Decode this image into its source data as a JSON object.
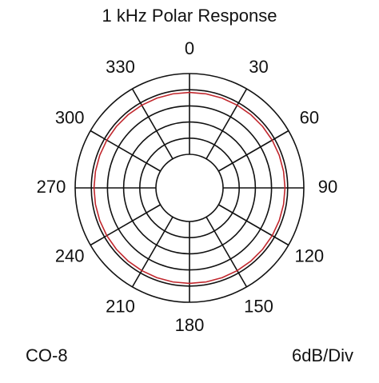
{
  "chart_data": {
    "type": "polar",
    "title": "1 kHz Polar Response",
    "rlim": [
      -30,
      0
    ],
    "rticks": [
      -30,
      -24,
      -18,
      -12,
      -6,
      0
    ],
    "thetaticks": [
      0,
      30,
      60,
      90,
      120,
      150,
      180,
      210,
      240,
      270,
      300,
      330
    ],
    "theta": [
      0,
      10,
      20,
      30,
      40,
      50,
      60,
      70,
      80,
      90,
      100,
      110,
      120,
      130,
      140,
      150,
      160,
      170,
      180,
      190,
      200,
      210,
      220,
      230,
      240,
      250,
      260,
      270,
      280,
      290,
      300,
      310,
      320,
      330,
      340,
      350
    ],
    "values": [
      -7,
      -7,
      -7,
      -7,
      -7,
      -7,
      -7,
      -7,
      -7,
      -7,
      -7,
      -7,
      -7,
      -7,
      -7,
      -7,
      -7,
      -7,
      -7,
      -7,
      -7,
      -7,
      -7,
      -7,
      -7,
      -7,
      -7,
      -7,
      -7,
      -7,
      -7,
      -7,
      -7,
      -7,
      -7,
      -7
    ],
    "color": "#c1272d",
    "grid": true,
    "model": "CO-8",
    "scale_note": "6dB/Div"
  }
}
